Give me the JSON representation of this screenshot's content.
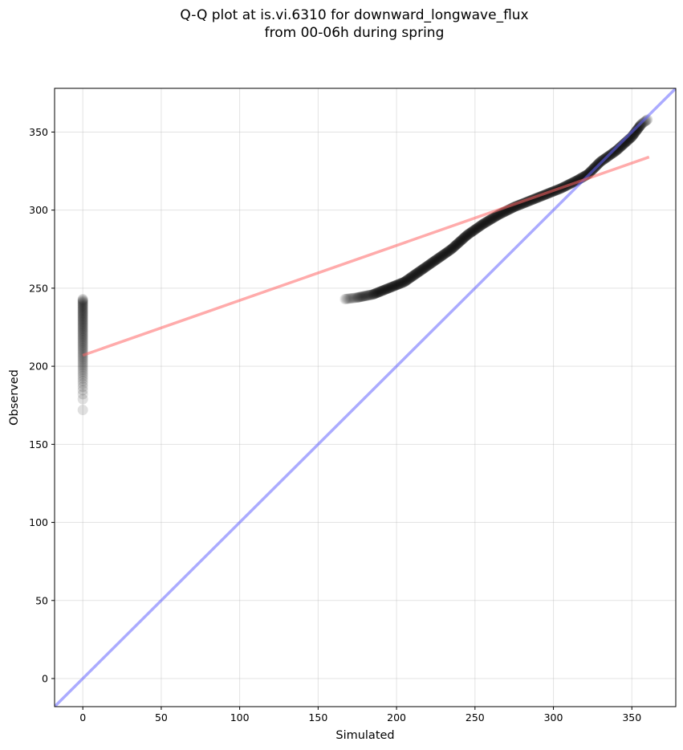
{
  "chart_data": {
    "type": "scatter",
    "title": [
      "Q-Q plot at is.vi.6310 for downward_longwave_flux",
      "from 00-06h during spring"
    ],
    "xlabel": "Simulated",
    "ylabel": "Observed",
    "xlim": [
      -18,
      378
    ],
    "ylim": [
      -18,
      378
    ],
    "xticks": [
      0,
      50,
      100,
      150,
      200,
      250,
      300,
      350
    ],
    "yticks": [
      0,
      50,
      100,
      150,
      200,
      250,
      300,
      350
    ],
    "grid": true,
    "points": {
      "marker_color": "#000000",
      "zero_cluster": {
        "x": 0,
        "y_min": 172,
        "y_max": 243
      },
      "curve": [
        [
          167,
          243
        ],
        [
          175,
          244
        ],
        [
          185,
          246
        ],
        [
          195,
          250
        ],
        [
          205,
          254
        ],
        [
          215,
          261
        ],
        [
          225,
          268
        ],
        [
          235,
          275
        ],
        [
          245,
          284
        ],
        [
          255,
          291
        ],
        [
          265,
          297
        ],
        [
          275,
          302
        ],
        [
          285,
          306
        ],
        [
          295,
          310
        ],
        [
          305,
          314
        ],
        [
          315,
          319
        ],
        [
          322,
          323
        ],
        [
          330,
          331
        ],
        [
          340,
          338
        ],
        [
          350,
          347
        ],
        [
          356,
          355
        ],
        [
          360,
          358
        ]
      ]
    },
    "lines": [
      {
        "name": "identity",
        "color": "#6666ff",
        "x": [
          -18,
          378
        ],
        "y": [
          -18,
          378
        ]
      },
      {
        "name": "regression",
        "color": "#ff6666",
        "x": [
          0,
          361
        ],
        "y": [
          207,
          334
        ]
      }
    ]
  }
}
